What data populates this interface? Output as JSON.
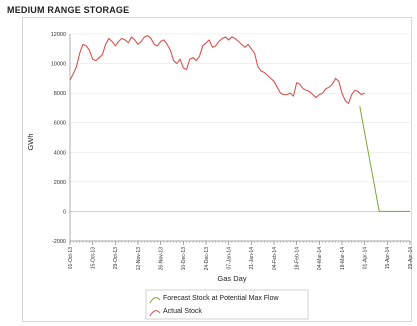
{
  "title": "MEDIUM RANGE STORAGE",
  "chart_data": {
    "type": "line",
    "title": "MEDIUM RANGE STORAGE",
    "xlabel": "Gas Day",
    "ylabel": "GWh",
    "ylim": [
      -2000,
      12000
    ],
    "yticks": [
      -2000,
      0,
      2000,
      4000,
      6000,
      8000,
      10000,
      12000
    ],
    "xlim": [
      "2013-10-01",
      "2014-04-29"
    ],
    "xtick_labels": [
      "01-Oct-13",
      "15-Oct-13",
      "29-Oct-13",
      "12-Nov-13",
      "26-Nov-13",
      "10-Dec-13",
      "24-Dec-13",
      "07-Jan-14",
      "21-Jan-14",
      "04-Feb-14",
      "18-Feb-14",
      "04-Mar-14",
      "18-Mar-14",
      "01-Apr-14",
      "15-Apr-14",
      "29-Apr-14"
    ],
    "xtick_dates": [
      "2013-10-01",
      "2013-10-15",
      "2013-10-29",
      "2013-11-12",
      "2013-11-26",
      "2013-12-10",
      "2013-12-24",
      "2014-01-07",
      "2014-01-21",
      "2014-02-04",
      "2014-02-18",
      "2014-03-04",
      "2014-03-18",
      "2014-04-01",
      "2014-04-15",
      "2014-04-29"
    ],
    "grid": true,
    "legend_position": "bottom-center",
    "series": [
      {
        "name": "Forecast Stock at Potential Max Flow",
        "color": "#7aa63a",
        "x": [
          "2014-03-29",
          "2014-04-10",
          "2014-04-15",
          "2014-04-22",
          "2014-04-29"
        ],
        "y": [
          7100,
          0,
          0,
          0,
          0
        ]
      },
      {
        "name": "Actual Stock",
        "color": "#d9534f",
        "x": [
          "2013-10-01",
          "2013-10-03",
          "2013-10-05",
          "2013-10-07",
          "2013-10-09",
          "2013-10-11",
          "2013-10-13",
          "2013-10-15",
          "2013-10-17",
          "2013-10-19",
          "2013-10-21",
          "2013-10-23",
          "2013-10-25",
          "2013-10-27",
          "2013-10-29",
          "2013-10-31",
          "2013-11-02",
          "2013-11-04",
          "2013-11-06",
          "2013-11-08",
          "2013-11-10",
          "2013-11-12",
          "2013-11-14",
          "2013-11-16",
          "2013-11-18",
          "2013-11-20",
          "2013-11-22",
          "2013-11-24",
          "2013-11-26",
          "2013-11-28",
          "2013-11-30",
          "2013-12-02",
          "2013-12-04",
          "2013-12-06",
          "2013-12-08",
          "2013-12-10",
          "2013-12-12",
          "2013-12-14",
          "2013-12-16",
          "2013-12-18",
          "2013-12-20",
          "2013-12-22",
          "2013-12-24",
          "2013-12-26",
          "2013-12-28",
          "2013-12-30",
          "2014-01-01",
          "2014-01-03",
          "2014-01-05",
          "2014-01-07",
          "2014-01-09",
          "2014-01-11",
          "2014-01-13",
          "2014-01-15",
          "2014-01-17",
          "2014-01-19",
          "2014-01-21",
          "2014-01-23",
          "2014-01-25",
          "2014-01-27",
          "2014-01-29",
          "2014-01-31",
          "2014-02-02",
          "2014-02-04",
          "2014-02-06",
          "2014-02-08",
          "2014-02-10",
          "2014-02-12",
          "2014-02-14",
          "2014-02-16",
          "2014-02-18",
          "2014-02-20",
          "2014-02-22",
          "2014-02-24",
          "2014-02-26",
          "2014-02-28",
          "2014-03-02",
          "2014-03-04",
          "2014-03-06",
          "2014-03-08",
          "2014-03-10",
          "2014-03-12",
          "2014-03-14",
          "2014-03-16",
          "2014-03-18",
          "2014-03-20",
          "2014-03-22",
          "2014-03-24",
          "2014-03-26",
          "2014-03-28",
          "2014-03-30",
          "2014-04-01"
        ],
        "y": [
          8900,
          9300,
          9800,
          10700,
          11300,
          11200,
          10900,
          10300,
          10200,
          10400,
          10600,
          11300,
          11700,
          11500,
          11200,
          11500,
          11700,
          11600,
          11400,
          11800,
          11600,
          11300,
          11500,
          11800,
          11900,
          11700,
          11300,
          11200,
          11500,
          11600,
          11300,
          10900,
          10200,
          10000,
          10300,
          9700,
          9600,
          10300,
          10400,
          10200,
          10500,
          11200,
          11400,
          11600,
          11100,
          11200,
          11500,
          11700,
          11800,
          11600,
          11800,
          11700,
          11500,
          11300,
          11100,
          11300,
          11000,
          10700,
          9800,
          9500,
          9400,
          9200,
          9000,
          8800,
          8400,
          8000,
          7900,
          7900,
          8000,
          7800,
          8700,
          8600,
          8300,
          8200,
          8100,
          7900,
          7700,
          7900,
          8000,
          8300,
          8400,
          8600,
          9000,
          8800,
          8000,
          7500,
          7300,
          7900,
          8200,
          8100,
          7900,
          8000
        ]
      }
    ]
  }
}
